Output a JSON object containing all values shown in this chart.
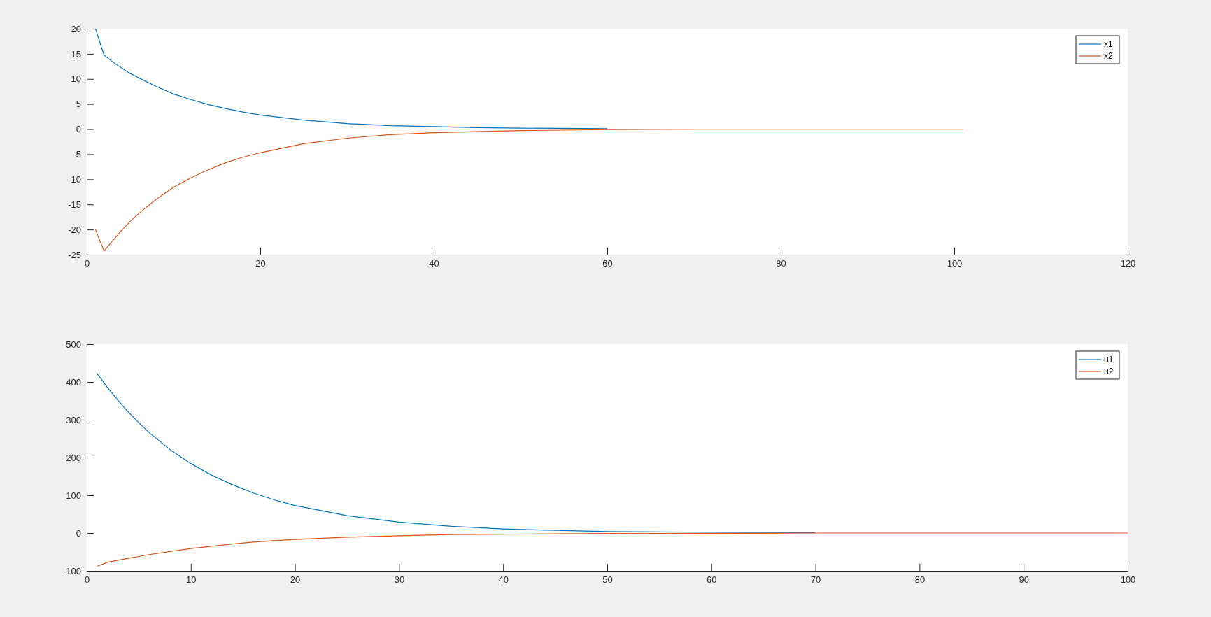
{
  "chart_data": [
    {
      "type": "line",
      "legend": "top right",
      "xlim": [
        0,
        120
      ],
      "xticks": [
        0,
        20,
        40,
        60,
        80,
        100,
        120
      ],
      "ylim": [
        -25,
        20
      ],
      "yticks": [
        -25,
        -20,
        -15,
        -10,
        -5,
        0,
        5,
        10,
        15,
        20
      ],
      "x": [
        1,
        2,
        3,
        4,
        5,
        6,
        8,
        10,
        12,
        14,
        16,
        18,
        20,
        25,
        30,
        35,
        40,
        45,
        50,
        60,
        70,
        80,
        90,
        101
      ],
      "series": [
        {
          "name": "x1",
          "color": "#0072bd",
          "values": [
            20,
            14.7,
            13.4,
            12.2,
            11.1,
            10.2,
            8.5,
            7.0,
            5.9,
            4.9,
            4.1,
            3.4,
            2.8,
            1.8,
            1.1,
            0.7,
            0.5,
            0.3,
            0.2,
            0.1,
            null,
            null,
            null,
            null
          ]
        },
        {
          "name": "x2",
          "color": "#d95319",
          "values": [
            -20,
            -24.3,
            -22.2,
            -20.2,
            -18.4,
            -16.8,
            -14.0,
            -11.6,
            -9.7,
            -8.1,
            -6.7,
            -5.6,
            -4.7,
            -2.9,
            -1.8,
            -1.1,
            -0.7,
            -0.5,
            -0.3,
            -0.1,
            0,
            0,
            0,
            0
          ]
        }
      ]
    },
    {
      "type": "line",
      "legend": "top right",
      "xlim": [
        0,
        100
      ],
      "xticks": [
        0,
        10,
        20,
        30,
        40,
        50,
        60,
        70,
        80,
        90,
        100
      ],
      "ylim": [
        -100,
        500
      ],
      "yticks": [
        -100,
        0,
        100,
        200,
        300,
        400,
        500
      ],
      "x": [
        1,
        2,
        3,
        4,
        5,
        6,
        8,
        10,
        12,
        14,
        16,
        18,
        20,
        25,
        30,
        35,
        40,
        45,
        50,
        60,
        70,
        80,
        90,
        100
      ],
      "series": [
        {
          "name": "u1",
          "color": "#0072bd",
          "values": [
            422,
            385,
            351,
            320,
            292,
            266,
            221,
            184,
            153,
            128,
            106,
            88,
            73,
            46,
            29,
            18,
            11,
            7,
            4,
            2,
            1,
            null,
            null,
            null
          ]
        },
        {
          "name": "u2",
          "color": "#d95319",
          "values": [
            -88,
            -77,
            -72,
            -67,
            -62,
            -57,
            -49,
            -41,
            -35,
            -29,
            -24,
            -20,
            -17,
            -11,
            -7,
            -4,
            -3,
            -2,
            -1,
            -1,
            0,
            0,
            0,
            0
          ]
        }
      ]
    }
  ]
}
